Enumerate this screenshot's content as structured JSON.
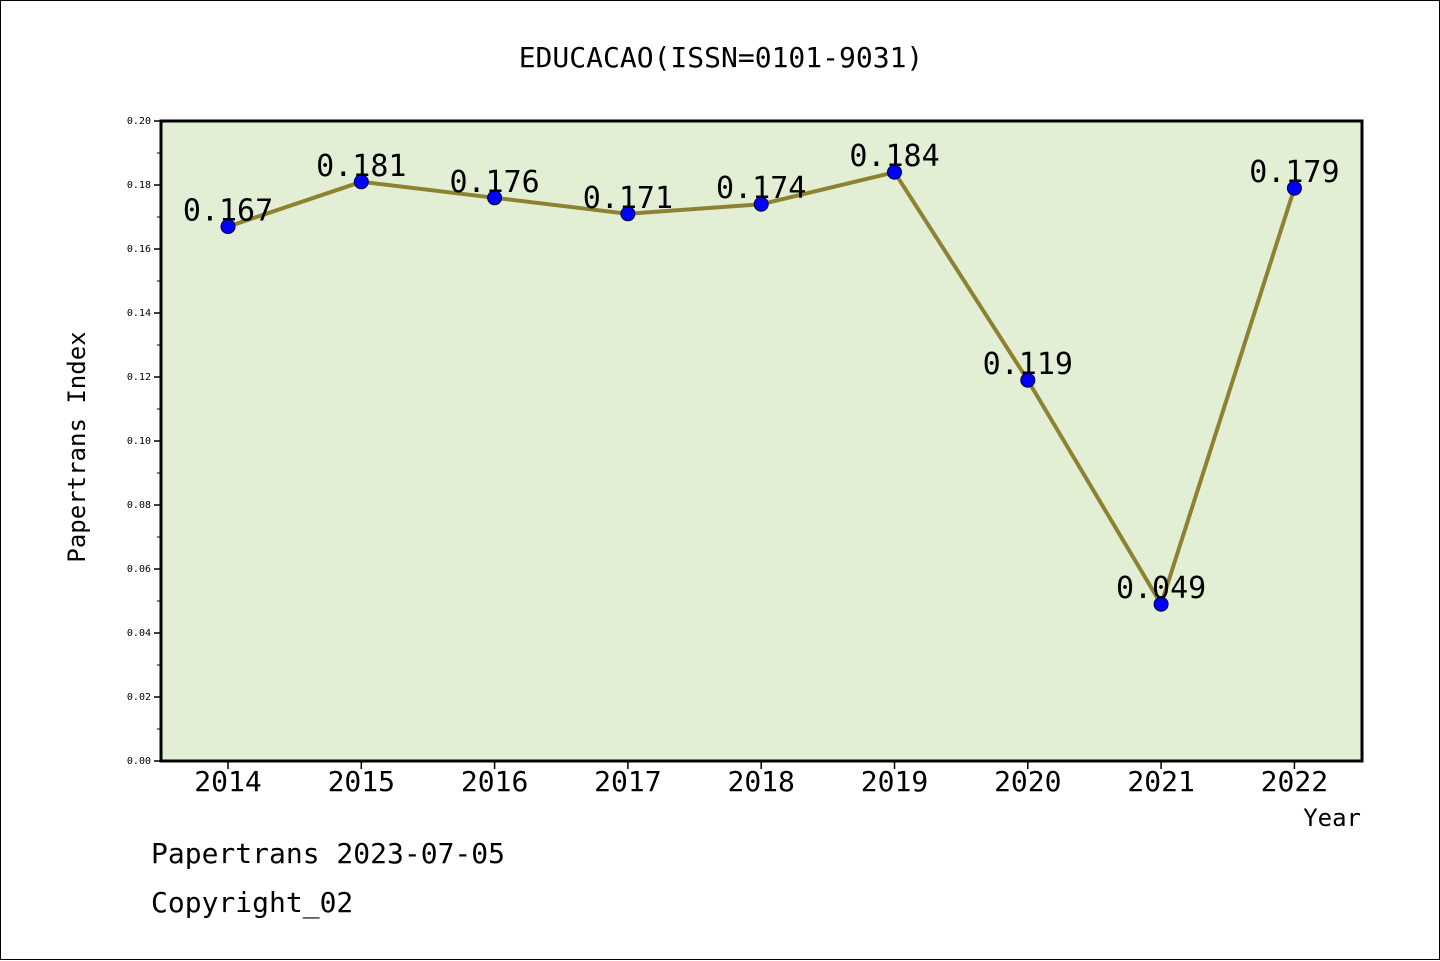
{
  "chart_data": {
    "type": "line",
    "title": "EDUCACAO(ISSN=0101-9031)",
    "xlabel": "Year",
    "ylabel": "Papertrans Index",
    "categories": [
      "2014",
      "2015",
      "2016",
      "2017",
      "2018",
      "2019",
      "2020",
      "2021",
      "2022"
    ],
    "series": [
      {
        "values": [
          0.167,
          0.181,
          0.176,
          0.171,
          0.174,
          0.184,
          0.119,
          0.049,
          0.179
        ],
        "data_labels": [
          "0.167",
          "0.181",
          "0.176",
          "0.171",
          "0.174",
          "0.184",
          "0.119",
          "0.049",
          "0.179"
        ]
      }
    ],
    "ylim": [
      0.0,
      0.2
    ],
    "yticks": [
      "0.00",
      "0.02",
      "0.04",
      "0.06",
      "0.08",
      "0.10",
      "0.12",
      "0.14",
      "0.16",
      "0.18",
      "0.20"
    ],
    "grid": false,
    "colors": {
      "plot_background": "#e2efd4",
      "line": "#8e8232",
      "marker_fill": "#0000ff",
      "axis": "#000000"
    }
  },
  "footer": {
    "date_line": "Papertrans 2023-07-05",
    "copyright": "Copyright_02"
  }
}
